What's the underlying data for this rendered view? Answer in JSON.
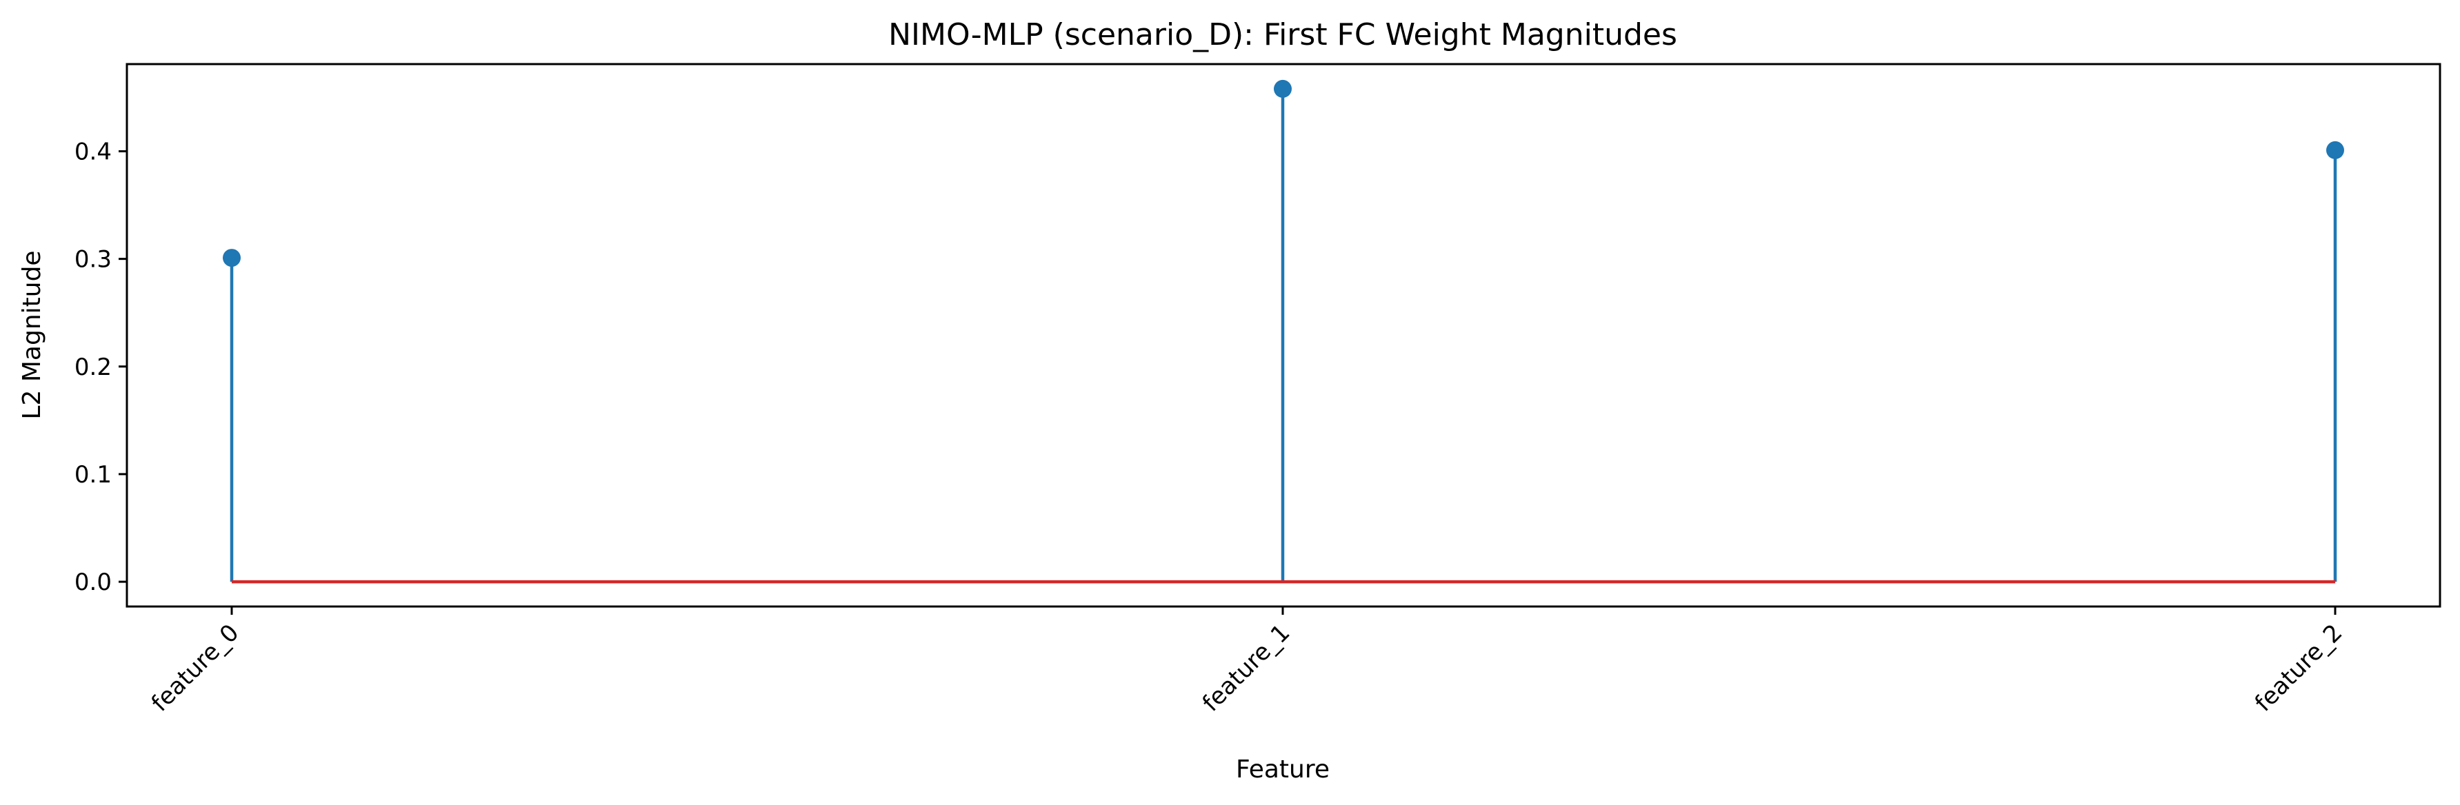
{
  "chart_data": {
    "type": "stem",
    "title": "NIMO-MLP (scenario_D): First FC Weight Magnitudes",
    "xlabel": "Feature",
    "ylabel": "L2 Magnitude",
    "categories": [
      "feature_0",
      "feature_1",
      "feature_2"
    ],
    "values": [
      0.301,
      0.458,
      0.401
    ],
    "ylim": [
      -0.023,
      0.481
    ],
    "yticks": [
      0.0,
      0.1,
      0.2,
      0.3,
      0.4
    ],
    "ytick_labels": [
      "0.0",
      "0.1",
      "0.2",
      "0.3",
      "0.4"
    ],
    "baseline": 0.0,
    "grid": false,
    "colors": {
      "stem": "#1f77b4",
      "marker": "#1f77b4",
      "baseline": "#d62728"
    }
  }
}
